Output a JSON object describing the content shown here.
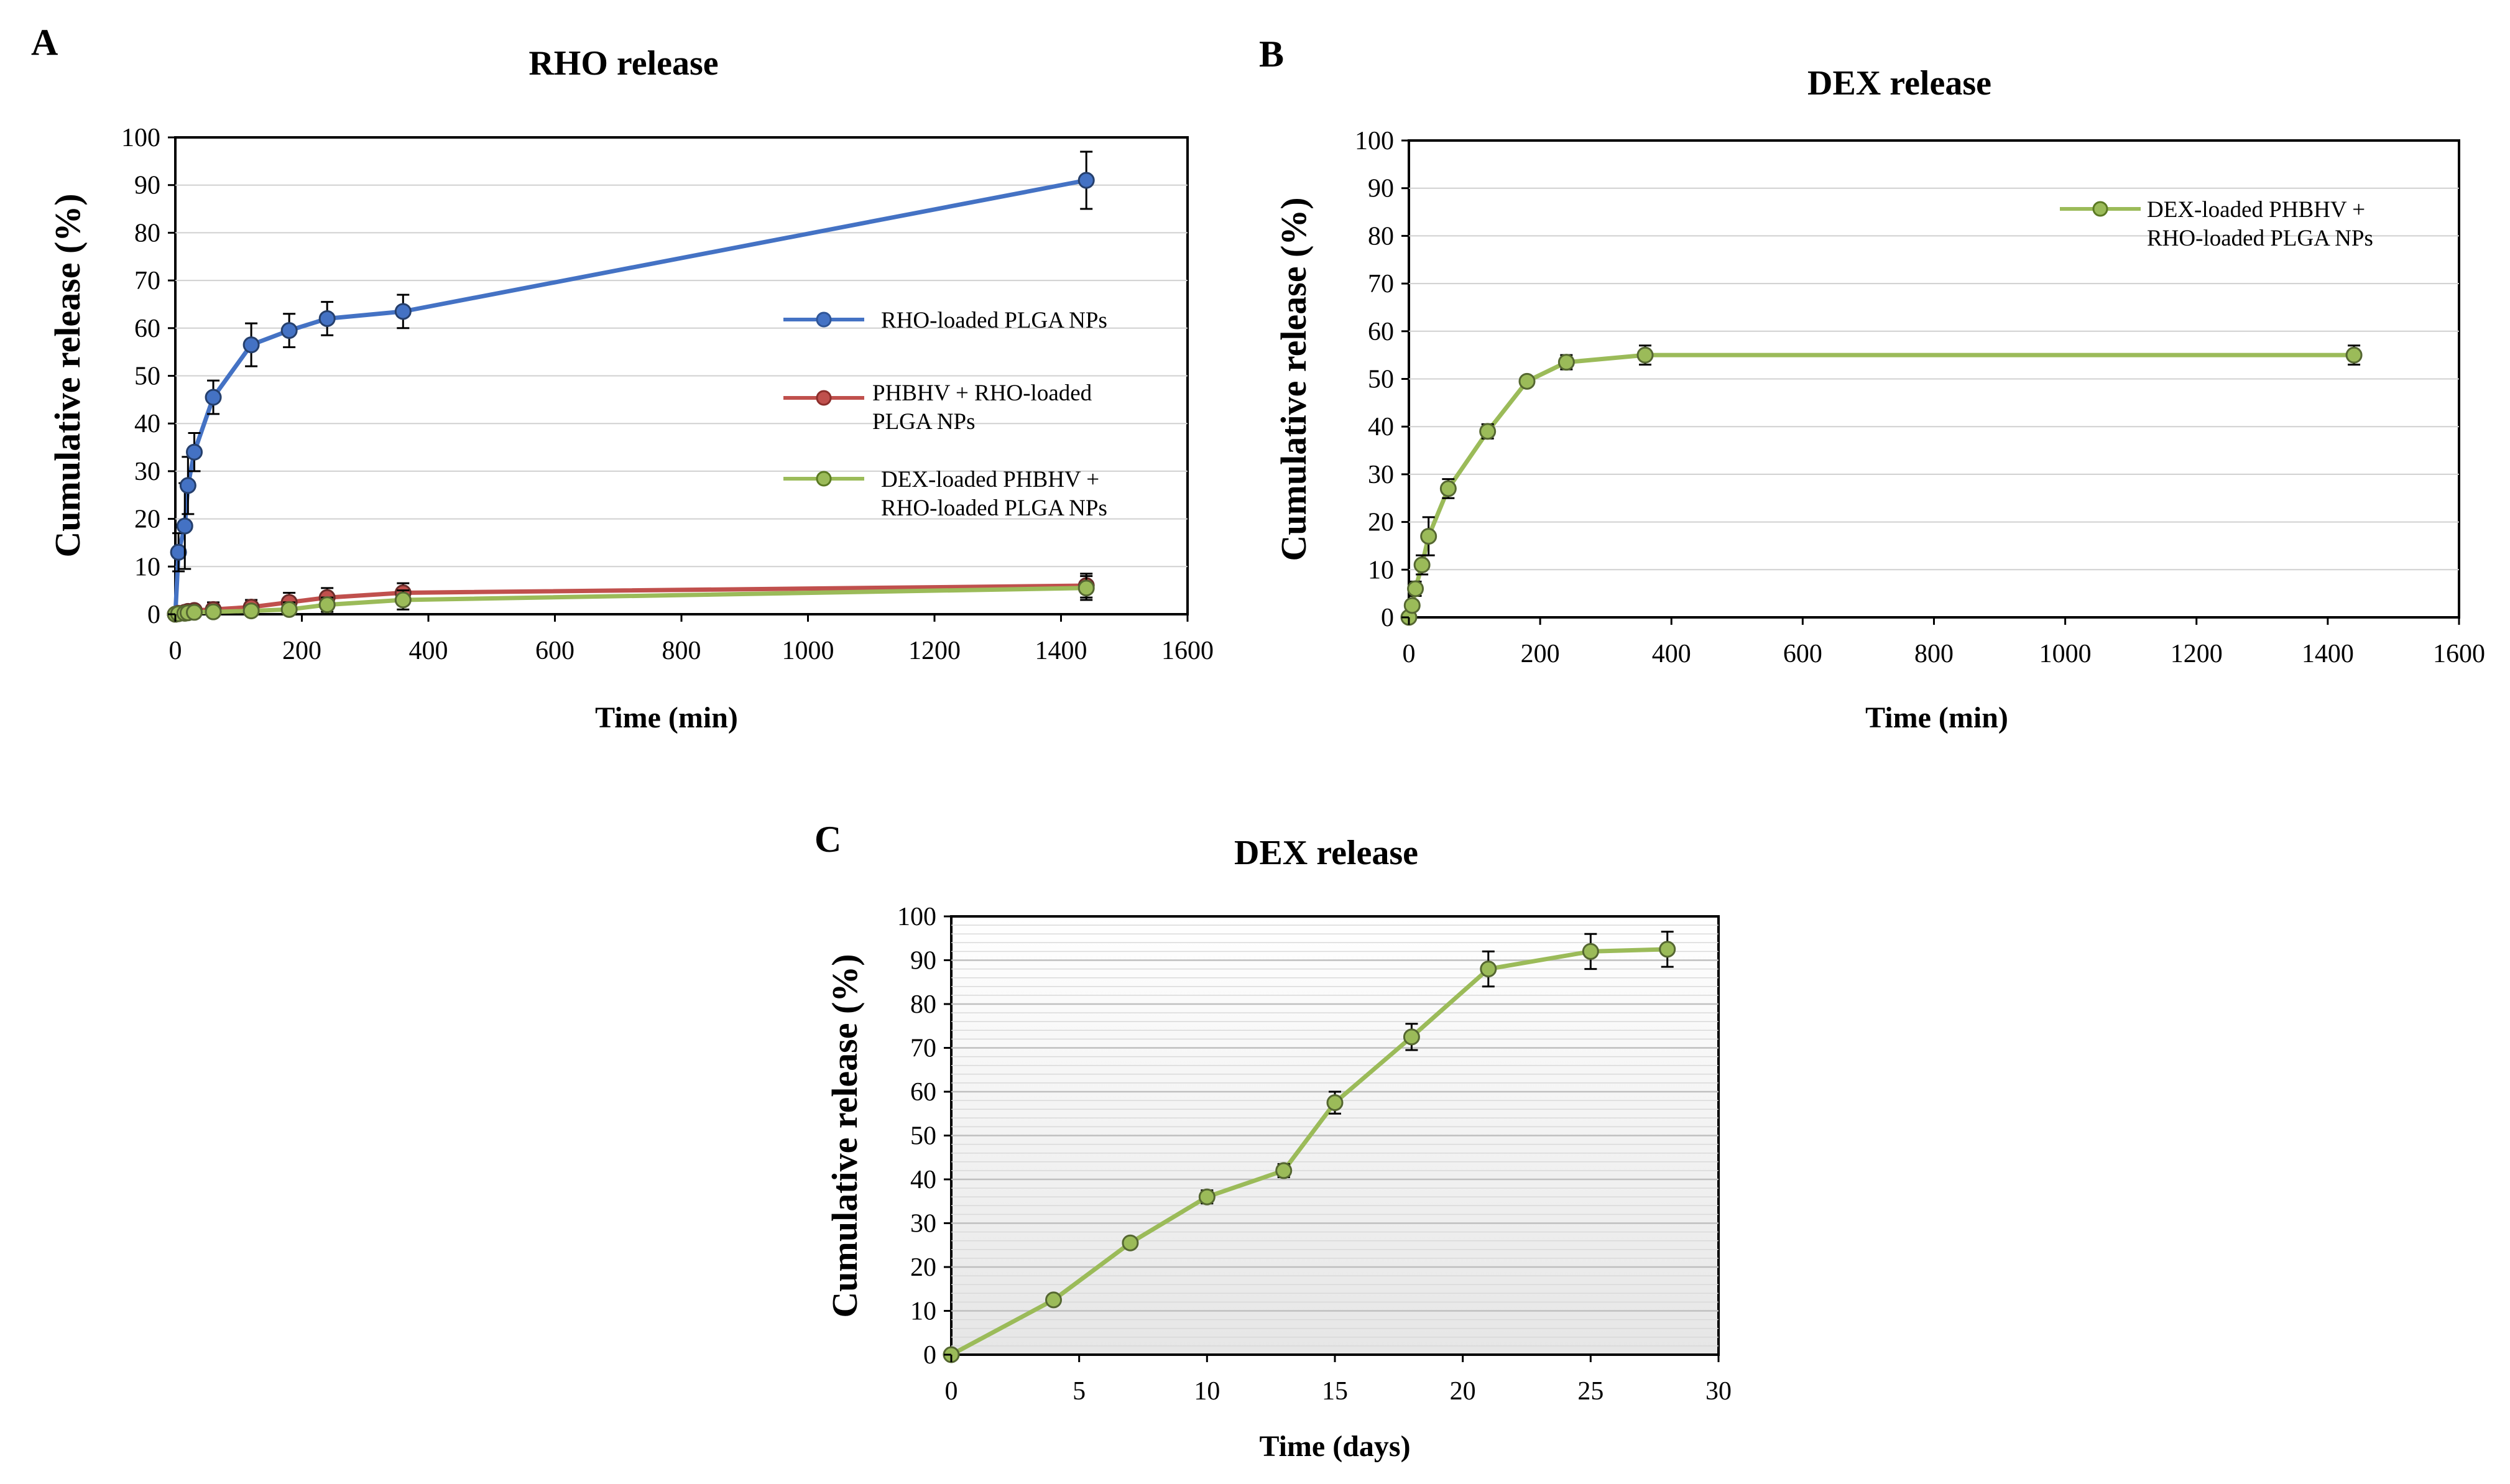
{
  "chart_data": [
    {
      "panel": "A",
      "type": "line",
      "title": "RHO release",
      "xlabel": "Time (min)",
      "ylabel": "Cumulative release (%)",
      "xlim": [
        0,
        1600
      ],
      "ylim": [
        0,
        100
      ],
      "xticks": [
        0,
        200,
        400,
        600,
        800,
        1000,
        1200,
        1400,
        1600
      ],
      "yticks": [
        0,
        10,
        20,
        30,
        40,
        50,
        60,
        70,
        80,
        90,
        100
      ],
      "grid": "horizontal",
      "legend": "right-middle",
      "series": [
        {
          "name": "RHO-loaded PLGA NPs",
          "color": "#4472C4",
          "points": [
            {
              "x": 0,
              "y": 0,
              "err": 0
            },
            {
              "x": 5,
              "y": 13,
              "err": 4
            },
            {
              "x": 15,
              "y": 18.5,
              "err": 9
            },
            {
              "x": 20,
              "y": 27,
              "err": 6
            },
            {
              "x": 30,
              "y": 34,
              "err": 4
            },
            {
              "x": 60,
              "y": 45.5,
              "err": 3.5
            },
            {
              "x": 120,
              "y": 56.5,
              "err": 4.5
            },
            {
              "x": 180,
              "y": 59.5,
              "err": 3.5
            },
            {
              "x": 240,
              "y": 62,
              "err": 3.5
            },
            {
              "x": 360,
              "y": 63.5,
              "err": 3.5
            },
            {
              "x": 1440,
              "y": 91,
              "err": 6
            }
          ]
        },
        {
          "name": "PHBHV + RHO-loaded PLGA NPs",
          "color": "#C0504D",
          "points": [
            {
              "x": 0,
              "y": 0,
              "err": 0
            },
            {
              "x": 5,
              "y": 0.2,
              "err": 0.3
            },
            {
              "x": 15,
              "y": 0.4,
              "err": 0.4
            },
            {
              "x": 20,
              "y": 0.6,
              "err": 0.5
            },
            {
              "x": 30,
              "y": 0.8,
              "err": 0.7
            },
            {
              "x": 60,
              "y": 1,
              "err": 1.5
            },
            {
              "x": 120,
              "y": 1.5,
              "err": 1.5
            },
            {
              "x": 180,
              "y": 2.5,
              "err": 2
            },
            {
              "x": 240,
              "y": 3.5,
              "err": 2
            },
            {
              "x": 360,
              "y": 4.5,
              "err": 2
            },
            {
              "x": 1440,
              "y": 6,
              "err": 2.5
            }
          ]
        },
        {
          "name": "DEX-loaded PHBHV + RHO-loaded PLGA NPs",
          "color": "#9BBB59",
          "points": [
            {
              "x": 0,
              "y": 0,
              "err": 0
            },
            {
              "x": 5,
              "y": 0.1,
              "err": 0.3
            },
            {
              "x": 15,
              "y": 0.2,
              "err": 0.4
            },
            {
              "x": 20,
              "y": 0.3,
              "err": 0.5
            },
            {
              "x": 30,
              "y": 0.4,
              "err": 0.6
            },
            {
              "x": 60,
              "y": 0.5,
              "err": 1
            },
            {
              "x": 120,
              "y": 0.7,
              "err": 1
            },
            {
              "x": 180,
              "y": 1,
              "err": 1.5
            },
            {
              "x": 240,
              "y": 2,
              "err": 1.5
            },
            {
              "x": 360,
              "y": 3,
              "err": 2
            },
            {
              "x": 1440,
              "y": 5.5,
              "err": 2.5
            }
          ]
        }
      ]
    },
    {
      "panel": "B",
      "type": "line",
      "title": "DEX release",
      "xlabel": "Time (min)",
      "ylabel": "Cumulative release (%)",
      "xlim": [
        0,
        1600
      ],
      "ylim": [
        0,
        100
      ],
      "xticks": [
        0,
        200,
        400,
        600,
        800,
        1000,
        1200,
        1400,
        1600
      ],
      "yticks": [
        0,
        10,
        20,
        30,
        40,
        50,
        60,
        70,
        80,
        90,
        100
      ],
      "grid": "horizontal",
      "legend": "top-right",
      "series": [
        {
          "name": "DEX-loaded PHBHV + RHO-loaded PLGA NPs",
          "color": "#9BBB59",
          "points": [
            {
              "x": 0,
              "y": 0,
              "err": 0
            },
            {
              "x": 5,
              "y": 2.5,
              "err": 1
            },
            {
              "x": 10,
              "y": 6,
              "err": 1.5
            },
            {
              "x": 20,
              "y": 11,
              "err": 2
            },
            {
              "x": 30,
              "y": 17,
              "err": 4
            },
            {
              "x": 60,
              "y": 27,
              "err": 2
            },
            {
              "x": 120,
              "y": 39,
              "err": 1.5
            },
            {
              "x": 180,
              "y": 49.5,
              "err": 1
            },
            {
              "x": 240,
              "y": 53.5,
              "err": 1.5
            },
            {
              "x": 360,
              "y": 55,
              "err": 2
            },
            {
              "x": 1440,
              "y": 55,
              "err": 2
            }
          ]
        }
      ]
    },
    {
      "panel": "C",
      "type": "line",
      "title": "DEX release",
      "xlabel": "Time (days)",
      "ylabel": "Cumulative release (%)",
      "xlim": [
        0,
        30
      ],
      "ylim": [
        0,
        100
      ],
      "xticks": [
        0,
        5,
        10,
        15,
        20,
        25,
        30
      ],
      "yticks": [
        0,
        10,
        20,
        30,
        40,
        50,
        60,
        70,
        80,
        90,
        100
      ],
      "grid": "horizontal-fine",
      "legend": "none",
      "series": [
        {
          "color": "#9BBB59",
          "points": [
            {
              "x": 0,
              "y": 0,
              "err": 0
            },
            {
              "x": 4,
              "y": 12.5,
              "err": 0.6
            },
            {
              "x": 7,
              "y": 25.5,
              "err": 0.8
            },
            {
              "x": 10,
              "y": 36,
              "err": 1.5
            },
            {
              "x": 13,
              "y": 42,
              "err": 1.5
            },
            {
              "x": 15,
              "y": 57.5,
              "err": 2.5
            },
            {
              "x": 18,
              "y": 72.5,
              "err": 3
            },
            {
              "x": 21,
              "y": 88,
              "err": 4
            },
            {
              "x": 25,
              "y": 92,
              "err": 4
            },
            {
              "x": 28,
              "y": 92.5,
              "err": 4
            }
          ]
        }
      ]
    }
  ]
}
